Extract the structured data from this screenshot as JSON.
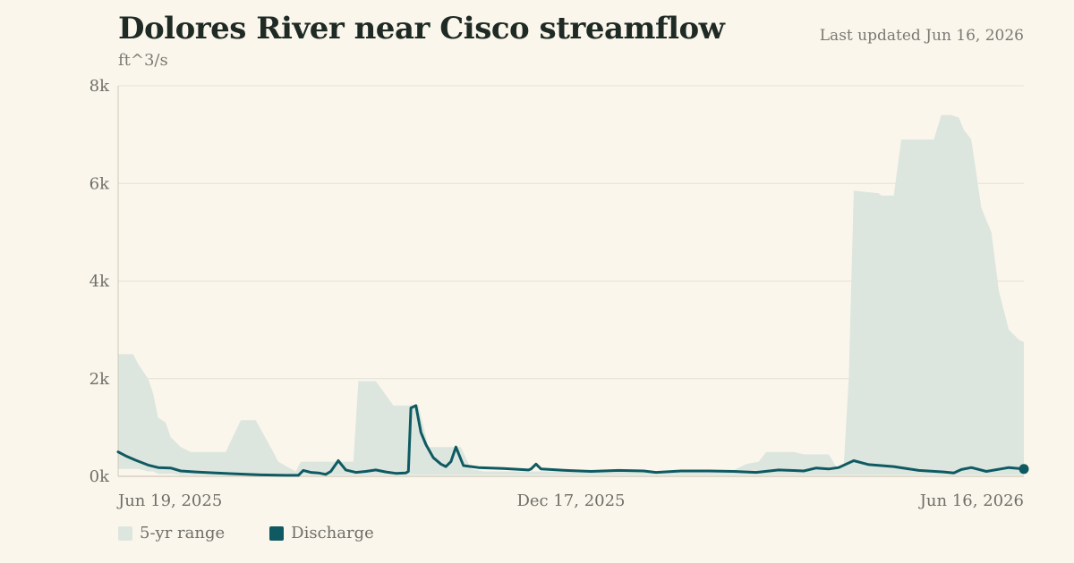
{
  "header": {
    "title": "Dolores River near Cisco streamflow",
    "updated": "Last updated Jun 16, 2026",
    "unit": "ft^3/s"
  },
  "colors": {
    "range_fill": "#dce6df",
    "discharge": "#0f5a62",
    "grid": "#e6e1d3",
    "axis": "#cfc9b8"
  },
  "legend": {
    "range_label": "5-yr range",
    "discharge_label": "Discharge"
  },
  "chart_data": {
    "type": "area",
    "title": "Dolores River near Cisco streamflow",
    "ylabel": "ft^3/s",
    "xlabel": "",
    "ylim": [
      0,
      8000
    ],
    "yticks": [
      0,
      2000,
      4000,
      6000,
      8000
    ],
    "ytick_labels": [
      "0k",
      "2k",
      "4k",
      "6k",
      "8k"
    ],
    "xlim": [
      "2025-06-19",
      "2026-06-16"
    ],
    "xtick_labels": [
      "Jun 19, 2025",
      "Dec 17, 2025",
      "Jun 16, 2026"
    ],
    "grid": true,
    "legend_position": "bottom-left",
    "series": [
      {
        "name": "5-yr range",
        "kind": "band",
        "x": [
          "2025-06-19",
          "2025-06-25",
          "2025-06-27",
          "2025-07-01",
          "2025-07-03",
          "2025-07-05",
          "2025-07-08",
          "2025-07-10",
          "2025-07-14",
          "2025-07-18",
          "2025-07-22",
          "2025-08-01",
          "2025-08-07",
          "2025-08-13",
          "2025-08-20",
          "2025-08-22",
          "2025-08-29",
          "2025-08-31",
          "2025-09-05",
          "2025-09-07",
          "2025-09-13",
          "2025-09-16",
          "2025-09-21",
          "2025-09-23",
          "2025-09-30",
          "2025-10-07",
          "2025-10-11",
          "2025-10-17",
          "2025-10-21",
          "2025-10-25",
          "2025-11-03",
          "2025-11-07",
          "2025-11-12",
          "2025-11-14",
          "2025-11-17",
          "2025-11-25",
          "2025-12-01",
          "2025-12-10",
          "2025-12-17",
          "2026-01-01",
          "2026-01-15",
          "2026-02-01",
          "2026-02-10",
          "2026-02-19",
          "2026-02-25",
          "2026-03-02",
          "2026-03-05",
          "2026-03-16",
          "2026-03-20",
          "2026-03-30",
          "2026-04-02",
          "2026-04-05",
          "2026-04-07",
          "2026-04-09",
          "2026-04-19",
          "2026-04-20",
          "2026-04-25",
          "2026-04-28",
          "2026-05-11",
          "2026-05-14",
          "2026-05-18",
          "2026-05-21",
          "2026-05-23",
          "2026-05-26",
          "2026-05-30",
          "2026-06-03",
          "2026-06-06",
          "2026-06-10",
          "2026-06-14",
          "2026-06-16"
        ],
        "high": [
          2500,
          2500,
          2300,
          2000,
          1700,
          1200,
          1100,
          800,
          600,
          500,
          500,
          500,
          1150,
          1150,
          500,
          300,
          100,
          300,
          300,
          300,
          300,
          300,
          300,
          1950,
          1950,
          1450,
          1450,
          1450,
          600,
          600,
          600,
          150,
          100,
          100,
          100,
          100,
          100,
          100,
          100,
          100,
          100,
          100,
          100,
          100,
          250,
          300,
          500,
          500,
          450,
          450,
          200,
          200,
          2000,
          5850,
          5800,
          5750,
          5750,
          6900,
          6900,
          7400,
          7400,
          7350,
          7100,
          6900,
          5500,
          5000,
          3800,
          3000,
          2800,
          2750
        ],
        "low": [
          150,
          150,
          150,
          100,
          100,
          50,
          50,
          50,
          30,
          30,
          30,
          30,
          30,
          30,
          30,
          30,
          30,
          30,
          30,
          30,
          30,
          30,
          30,
          30,
          30,
          30,
          30,
          30,
          30,
          30,
          30,
          30,
          30,
          30,
          30,
          30,
          30,
          30,
          30,
          30,
          30,
          30,
          30,
          30,
          30,
          30,
          30,
          30,
          30,
          30,
          30,
          30,
          30,
          30,
          30,
          30,
          30,
          30,
          30,
          30,
          30,
          30,
          30,
          30,
          30,
          30,
          30,
          30,
          30,
          30
        ]
      },
      {
        "name": "Discharge",
        "kind": "line",
        "x": [
          "2025-06-19",
          "2025-06-22",
          "2025-06-26",
          "2025-07-01",
          "2025-07-05",
          "2025-07-10",
          "2025-07-14",
          "2025-07-20",
          "2025-07-28",
          "2025-08-05",
          "2025-08-15",
          "2025-08-25",
          "2025-08-30",
          "2025-09-01",
          "2025-09-04",
          "2025-09-07",
          "2025-09-10",
          "2025-09-12",
          "2025-09-15",
          "2025-09-18",
          "2025-09-22",
          "2025-09-26",
          "2025-09-30",
          "2025-10-04",
          "2025-10-08",
          "2025-10-12",
          "2025-10-13",
          "2025-10-14",
          "2025-10-16",
          "2025-10-18",
          "2025-10-20",
          "2025-10-23",
          "2025-10-26",
          "2025-10-28",
          "2025-10-30",
          "2025-11-01",
          "2025-11-04",
          "2025-11-10",
          "2025-11-20",
          "2025-11-30",
          "2025-12-01",
          "2025-12-03",
          "2025-12-05",
          "2025-12-15",
          "2025-12-25",
          "2026-01-05",
          "2026-01-15",
          "2026-01-20",
          "2026-01-30",
          "2026-02-10",
          "2026-02-20",
          "2026-03-01",
          "2026-03-10",
          "2026-03-20",
          "2026-03-25",
          "2026-03-30",
          "2026-04-03",
          "2026-04-06",
          "2026-04-09",
          "2026-04-15",
          "2026-04-25",
          "2026-05-05",
          "2026-05-15",
          "2026-05-19",
          "2026-05-22",
          "2026-05-26",
          "2026-06-01",
          "2026-06-10",
          "2026-06-16"
        ],
        "y": [
          500,
          420,
          330,
          230,
          180,
          170,
          110,
          90,
          70,
          50,
          30,
          20,
          20,
          120,
          80,
          70,
          40,
          100,
          320,
          130,
          80,
          100,
          130,
          90,
          60,
          70,
          100,
          1400,
          1450,
          900,
          650,
          380,
          250,
          200,
          300,
          600,
          220,
          180,
          160,
          130,
          150,
          250,
          150,
          120,
          100,
          120,
          110,
          80,
          110,
          110,
          100,
          80,
          130,
          110,
          170,
          150,
          180,
          250,
          320,
          240,
          200,
          120,
          90,
          70,
          140,
          180,
          100,
          180,
          150
        ]
      }
    ]
  }
}
